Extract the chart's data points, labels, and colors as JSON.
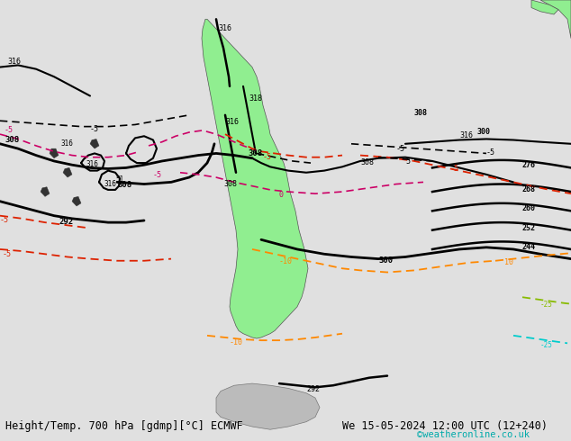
{
  "title_left": "Height/Temp. 700 hPa [gdmp][°C] ECMWF",
  "title_right": "We 15-05-2024 12:00 UTC (12+240)",
  "credit": "©weatheronline.co.uk",
  "bg_color": "#d8d8d8",
  "land_color": "#90ee90",
  "ocean_color": "#e8e8e8",
  "fig_width": 6.34,
  "fig_height": 4.9,
  "dpi": 100,
  "footer_fontsize": 8.5,
  "credit_fontsize": 7.5,
  "credit_color": "#00aaaa"
}
